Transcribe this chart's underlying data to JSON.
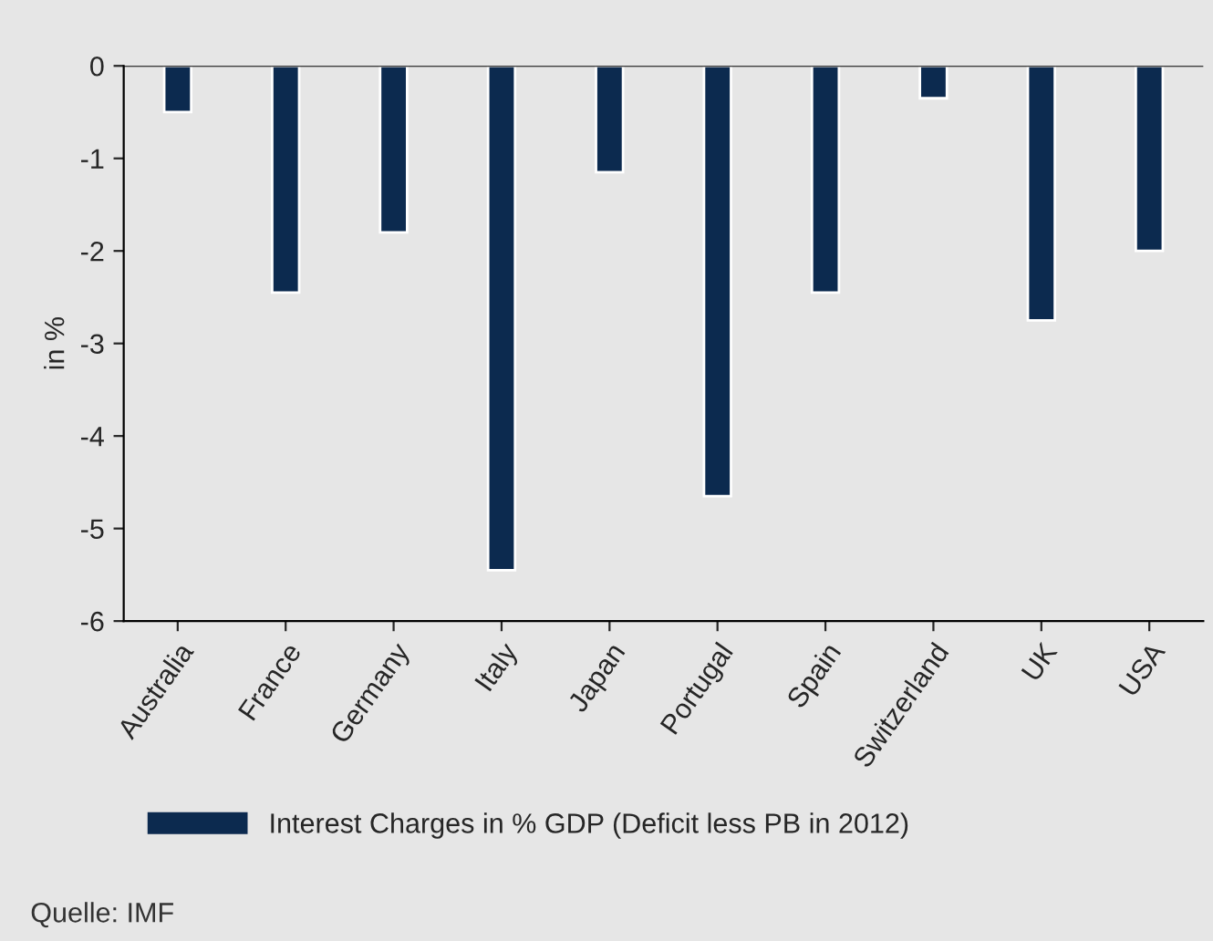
{
  "chart_data": {
    "type": "bar",
    "ylabel": "in %",
    "categories": [
      "Australia",
      "France",
      "Germany",
      "Italy",
      "Japan",
      "Portugal",
      "Spain",
      "Switzerland",
      "UK",
      "USA"
    ],
    "series": [
      {
        "name": "Interest Charges in % GDP (Deficit less PB in 2012)",
        "color": "#0c2a4f",
        "values": [
          -0.5,
          -2.45,
          -1.8,
          -5.45,
          -1.15,
          -4.65,
          -2.45,
          -0.35,
          -2.75,
          -2.0
        ]
      }
    ],
    "ylim": [
      -6,
      0
    ],
    "yticks": [
      -6,
      -5,
      -4,
      -3,
      -2,
      -1,
      0
    ],
    "grid": false,
    "legend": "bottom",
    "annotations": [
      "Quelle: IMF"
    ]
  }
}
